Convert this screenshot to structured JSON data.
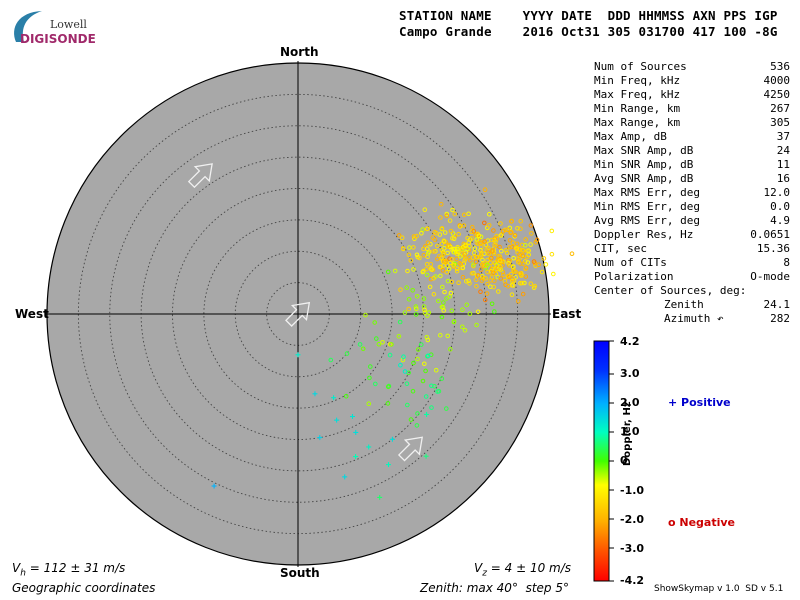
{
  "logo": {
    "line1": "Lowell",
    "line2": "DIGISONDE"
  },
  "header": {
    "line1": "STATION NAME    YYYY DATE  DDD HHMMSS AXN PPS IGP",
    "line2": "Campo Grande    2016 Oct31 305 031700 417 100 -8G"
  },
  "stats": [
    {
      "label": "Num of Sources",
      "value": "536"
    },
    {
      "label": "Min Freq, kHz",
      "value": "4000"
    },
    {
      "label": "Max Freq, kHz",
      "value": "4250"
    },
    {
      "label": "Min Range, km",
      "value": "267"
    },
    {
      "label": "Max Range, km",
      "value": "305"
    },
    {
      "label": "Max Amp, dB",
      "value": "37"
    },
    {
      "label": "Max SNR Amp, dB",
      "value": "24"
    },
    {
      "label": "Min SNR Amp, dB",
      "value": "11"
    },
    {
      "label": "Avg SNR Amp, dB",
      "value": "16"
    },
    {
      "label": "Max RMS Err, deg",
      "value": "12.0"
    },
    {
      "label": "Min RMS Err, deg",
      "value": "0.0"
    },
    {
      "label": "Avg RMS Err, deg",
      "value": "4.9"
    },
    {
      "label": "Doppler Res, Hz",
      "value": "0.0651"
    },
    {
      "label": "CIT, sec",
      "value": "15.36"
    },
    {
      "label": "Num of CITs",
      "value": "8"
    },
    {
      "label": "Polarization",
      "value": "O-mode"
    }
  ],
  "center": {
    "title": "Center of Sources, deg:",
    "zenith_label": "Zenith",
    "zenith_value": "24.1",
    "azimuth_label": "Azimuth ↶",
    "azimuth_value": "282"
  },
  "directions": {
    "north": "North",
    "south": "South",
    "east": "East",
    "west": "West"
  },
  "colorbar": {
    "ticks": [
      "4.2",
      "3.0",
      "2.0",
      "1.0",
      "0",
      "-1.0",
      "-2.0",
      "-3.0",
      "-4.2"
    ],
    "label": "Doppler, Hz",
    "positive": "+ Positive",
    "negative": "o Negative",
    "positive_color": "#0000cc",
    "negative_color": "#cc0000"
  },
  "footer": {
    "vh": "V",
    "vh_sub": "h",
    "vh_rest": " = 112 ± 31 m/s",
    "vz": "V",
    "vz_sub": "z",
    "vz_rest": " = 4 ± 10 m/s",
    "coords": "Geographic coordinates",
    "zenith": "Zenith: max 40°  step 5°",
    "version": "ShowSkymap v 1.0  SD v 5.1"
  },
  "chart_data": {
    "type": "scatter",
    "projection": "polar skymap",
    "zenith_max_deg": 40,
    "zenith_step_deg": 5,
    "doppler_range_hz": [
      -4.2,
      4.2
    ],
    "background_color": "#a8a8a8",
    "negative_cluster": {
      "marker": "circle",
      "description_points": "clusters at azimuth/zenith in degrees",
      "clusters": [
        {
          "az": 67,
          "zen": 26,
          "spread": 4.0,
          "count": 160,
          "doppler": -1.4
        },
        {
          "az": 75,
          "zen": 33,
          "spread": 4.0,
          "count": 230,
          "doppler": -1.6
        },
        {
          "az": 90,
          "zen": 22,
          "spread": 6.0,
          "count": 60,
          "doppler": -0.6
        },
        {
          "az": 125,
          "zen": 20,
          "spread": 5.0,
          "count": 40,
          "doppler": 0.4
        }
      ]
    },
    "positive_points": [
      {
        "az": 180,
        "zen": 6.5,
        "doppler": 1.3
      },
      {
        "az": 168,
        "zen": 13.0,
        "doppler": 1.6
      },
      {
        "az": 157,
        "zen": 14.5,
        "doppler": 1.3
      },
      {
        "az": 152,
        "zen": 18.5,
        "doppler": 1.4
      },
      {
        "az": 160,
        "zen": 18.0,
        "doppler": 1.5
      },
      {
        "az": 154,
        "zen": 21.0,
        "doppler": 1.5
      },
      {
        "az": 152,
        "zen": 24.0,
        "doppler": 1.2
      },
      {
        "az": 158,
        "zen": 24.5,
        "doppler": 1.0
      },
      {
        "az": 143,
        "zen": 25.0,
        "doppler": 1.5
      },
      {
        "az": 128,
        "zen": 26.0,
        "doppler": 0.9
      },
      {
        "az": 138,
        "zen": 30.5,
        "doppler": 0.7
      },
      {
        "az": 156,
        "zen": 32.0,
        "doppler": 0.6
      },
      {
        "az": 206,
        "zen": 30.5,
        "doppler": 2.1
      },
      {
        "az": 164,
        "zen": 27.0,
        "doppler": 1.6
      },
      {
        "az": 170,
        "zen": 20.0,
        "doppler": 1.7
      },
      {
        "az": 149,
        "zen": 28.0,
        "doppler": 1.1
      }
    ],
    "arrows": [
      {
        "from_az": 325,
        "from_zen": 27,
        "dir_deg": 45,
        "label": "upper-left"
      },
      {
        "from_az": 180,
        "from_zen": 0,
        "dir_deg": 45,
        "label": "center"
      },
      {
        "from_az": 140,
        "from_zen": 28,
        "dir_deg": 45,
        "label": "lower-right"
      }
    ]
  }
}
